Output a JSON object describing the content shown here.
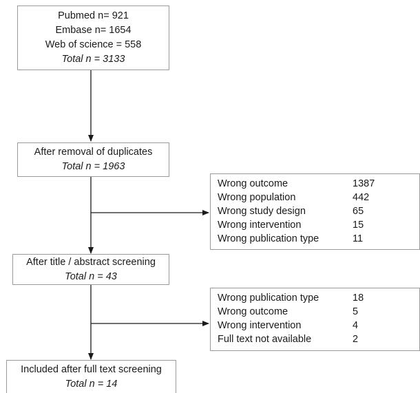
{
  "boxes": {
    "sources": {
      "lines": [
        "Pubmed n= 921",
        "Embase n= 1654",
        "Web of science = 558"
      ],
      "total": "Total n = 3133"
    },
    "duplicates": {
      "title": "After removal of duplicates",
      "total": "Total n = 1963"
    },
    "screening": {
      "title": "After title / abstract screening",
      "total": "Total n = 43"
    },
    "included": {
      "title": "Included after full text screening",
      "total": "Total n = 14"
    }
  },
  "exclusions_1": [
    {
      "reason": "Wrong outcome",
      "count": "1387"
    },
    {
      "reason": "Wrong population",
      "count": "442"
    },
    {
      "reason": "Wrong study design",
      "count": "65"
    },
    {
      "reason": "Wrong intervention",
      "count": "15"
    },
    {
      "reason": "Wrong publication type",
      "count": "11"
    }
  ],
  "exclusions_2": [
    {
      "reason": "Wrong publication type",
      "count": "18"
    },
    {
      "reason": "Wrong outcome",
      "count": "5"
    },
    {
      "reason": "Wrong intervention",
      "count": "4"
    },
    {
      "reason": "Full text not available",
      "count": "2"
    }
  ]
}
